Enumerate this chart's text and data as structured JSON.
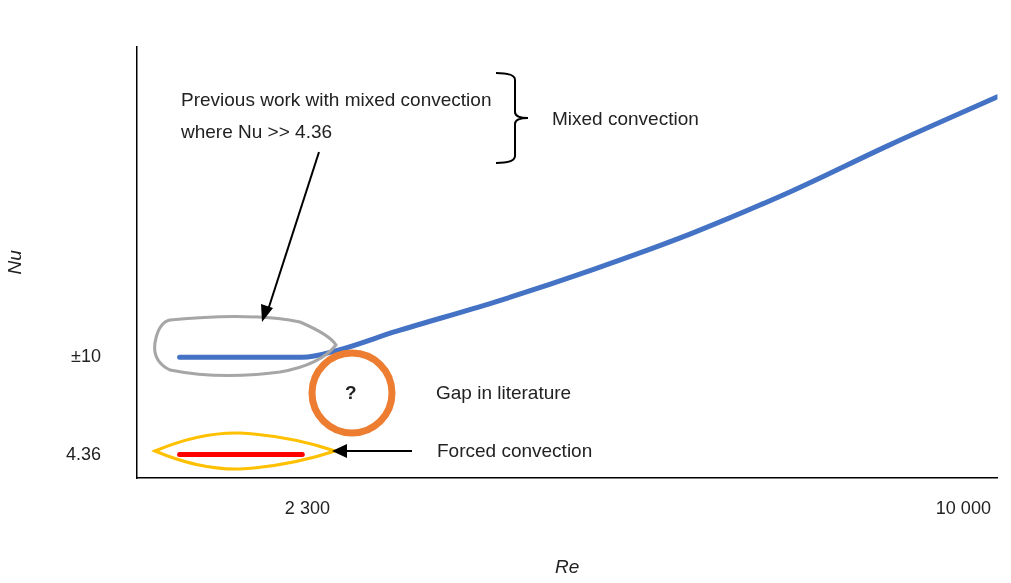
{
  "chart_data": {
    "type": "line",
    "xlabel": "Re",
    "ylabel": "Nu",
    "xlim": [
      300,
      10400
    ],
    "ylim": [
      3,
      28
    ],
    "xticks": [
      {
        "value": 2300,
        "label": "2 300"
      },
      {
        "value": 10000,
        "label": "10 000"
      }
    ],
    "yticks": [
      {
        "value": 4.36,
        "label": "4.36"
      },
      {
        "value": 10,
        "label": "±10"
      }
    ],
    "grid": false,
    "legend": false,
    "marker": "none",
    "line_style": "solid",
    "series": [
      {
        "color": "#4472c4",
        "x": [
          800,
          1500,
          2240,
          2650,
          3340,
          4500,
          5660,
          6820,
          7970,
          9130,
          10400
        ],
        "values": [
          10,
          10,
          10,
          10.4,
          11.5,
          13.2,
          15.1,
          17.2,
          19.6,
          22.3,
          25.1
        ]
      },
      {
        "color": "#ff0000",
        "x": [
          800,
          2240
        ],
        "values": [
          4.36,
          4.36
        ]
      }
    ],
    "annotations": [
      "Previous work with mixed convection where Nu >> 4.36",
      "Mixed convection",
      "?",
      "Gap in literature",
      "Forced convection"
    ]
  }
}
